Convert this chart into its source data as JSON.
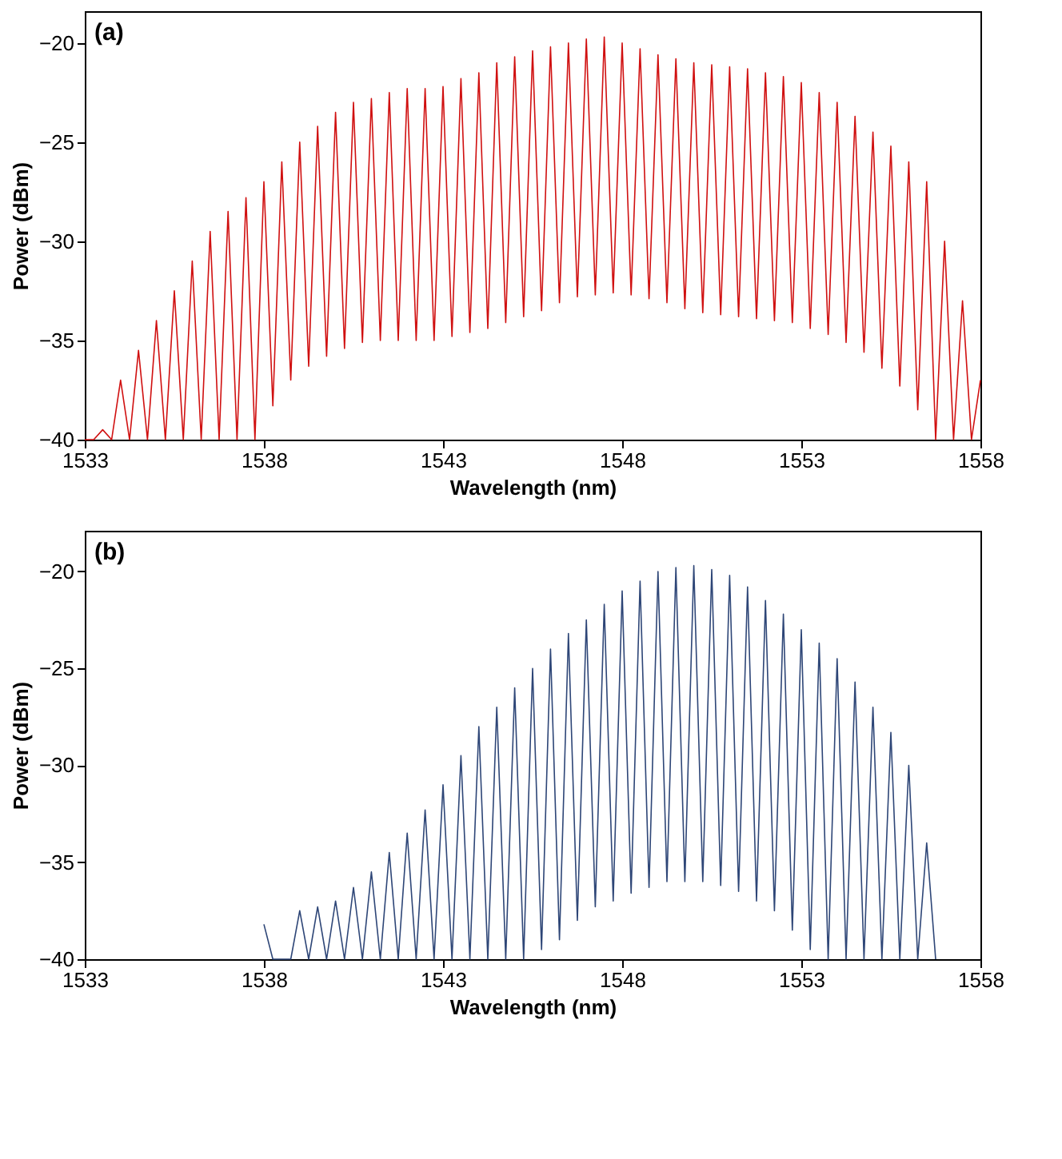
{
  "chart_data": [
    {
      "type": "line",
      "xlabel": "Wavelength (nm)",
      "ylabel": "Power (dBm)",
      "annotations": [
        "(a)"
      ],
      "xlim": [
        1533,
        1558
      ],
      "xticks": [
        1533,
        1538,
        1543,
        1548,
        1553,
        1558
      ],
      "ylim": [
        -40,
        -18.4
      ],
      "yticks": [
        -40,
        -35,
        -30,
        -25,
        -20
      ],
      "grid": false,
      "legend": false,
      "line_style": "solid",
      "marker": "none",
      "x": [
        1533.0,
        1533.25,
        1533.5,
        1533.75,
        1534.0,
        1534.25,
        1534.5,
        1534.75,
        1535.0,
        1535.25,
        1535.5,
        1535.75,
        1536.0,
        1536.25,
        1536.5,
        1536.75,
        1537.0,
        1537.25,
        1537.5,
        1537.75,
        1538.0,
        1538.25,
        1538.5,
        1538.75,
        1539.0,
        1539.25,
        1539.5,
        1539.75,
        1540.0,
        1540.25,
        1540.5,
        1540.75,
        1541.0,
        1541.25,
        1541.5,
        1541.75,
        1542.0,
        1542.25,
        1542.5,
        1542.75,
        1543.0,
        1543.25,
        1543.5,
        1543.75,
        1544.0,
        1544.25,
        1544.5,
        1544.75,
        1545.0,
        1545.25,
        1545.5,
        1545.75,
        1546.0,
        1546.25,
        1546.5,
        1546.75,
        1547.0,
        1547.25,
        1547.5,
        1547.75,
        1548.0,
        1548.25,
        1548.5,
        1548.75,
        1549.0,
        1549.25,
        1549.5,
        1549.75,
        1550.0,
        1550.25,
        1550.5,
        1550.75,
        1551.0,
        1551.25,
        1551.5,
        1551.75,
        1552.0,
        1552.25,
        1552.5,
        1552.75,
        1553.0,
        1553.25,
        1553.5,
        1553.75,
        1554.0,
        1554.25,
        1554.5,
        1554.75,
        1555.0,
        1555.25,
        1555.5,
        1555.75,
        1556.0,
        1556.25,
        1556.5,
        1556.75,
        1557.0,
        1557.25,
        1557.5,
        1557.75,
        1558.0
      ],
      "series": [
        {
          "color": "#d01010",
          "values": [
            -40,
            -40,
            -39.5,
            -40,
            -37,
            -40,
            -35.5,
            -40,
            -34,
            -40,
            -32.5,
            -40,
            -31,
            -40,
            -29.5,
            -40,
            -28.5,
            -40,
            -27.8,
            -40,
            -27,
            -38.3,
            -26,
            -37,
            -25,
            -36.3,
            -24.2,
            -35.8,
            -23.5,
            -35.4,
            -23,
            -35.1,
            -22.8,
            -35,
            -22.5,
            -35,
            -22.3,
            -35,
            -22.3,
            -35,
            -22.2,
            -34.8,
            -21.8,
            -34.6,
            -21.5,
            -34.4,
            -21,
            -34.1,
            -20.7,
            -33.8,
            -20.4,
            -33.5,
            -20.2,
            -33.1,
            -20,
            -32.8,
            -19.8,
            -32.7,
            -19.7,
            -32.6,
            -20,
            -32.7,
            -20.3,
            -32.9,
            -20.6,
            -33.1,
            -20.8,
            -33.4,
            -21,
            -33.6,
            -21.1,
            -33.7,
            -21.2,
            -33.8,
            -21.3,
            -33.9,
            -21.5,
            -34,
            -21.7,
            -34.1,
            -22,
            -34.4,
            -22.5,
            -34.7,
            -23,
            -35.1,
            -23.7,
            -35.6,
            -24.5,
            -36.4,
            -25.2,
            -37.3,
            -26,
            -38.5,
            -27,
            -40,
            -30,
            -40,
            -33,
            -40,
            -37
          ]
        }
      ]
    },
    {
      "type": "line",
      "xlabel": "Wavelength (nm)",
      "ylabel": "Power (dBm)",
      "annotations": [
        "(b)"
      ],
      "xlim": [
        1533,
        1558
      ],
      "xticks": [
        1533,
        1538,
        1543,
        1548,
        1553,
        1558
      ],
      "ylim": [
        -40,
        -17.9
      ],
      "yticks": [
        -40,
        -35,
        -30,
        -25,
        -20
      ],
      "grid": false,
      "legend": false,
      "line_style": "solid",
      "marker": "none",
      "x": [
        1538.0,
        1538.25,
        1538.5,
        1538.75,
        1539.0,
        1539.25,
        1539.5,
        1539.75,
        1540.0,
        1540.25,
        1540.5,
        1540.75,
        1541.0,
        1541.25,
        1541.5,
        1541.75,
        1542.0,
        1542.25,
        1542.5,
        1542.75,
        1543.0,
        1543.25,
        1543.5,
        1543.75,
        1544.0,
        1544.25,
        1544.5,
        1544.75,
        1545.0,
        1545.25,
        1545.5,
        1545.75,
        1546.0,
        1546.25,
        1546.5,
        1546.75,
        1547.0,
        1547.25,
        1547.5,
        1547.75,
        1548.0,
        1548.25,
        1548.5,
        1548.75,
        1549.0,
        1549.25,
        1549.5,
        1549.75,
        1550.0,
        1550.25,
        1550.5,
        1550.75,
        1551.0,
        1551.25,
        1551.5,
        1551.75,
        1552.0,
        1552.25,
        1552.5,
        1552.75,
        1553.0,
        1553.25,
        1553.5,
        1553.75,
        1554.0,
        1554.25,
        1554.5,
        1554.75,
        1555.0,
        1555.25,
        1555.5,
        1555.75,
        1556.0,
        1556.25,
        1556.5,
        1556.75
      ],
      "series": [
        {
          "color": "#2e4677",
          "values": [
            -38.2,
            -40,
            -40,
            -40,
            -37.5,
            -40,
            -37.3,
            -40,
            -37,
            -40,
            -36.3,
            -40,
            -35.5,
            -40,
            -34.5,
            -40,
            -33.5,
            -40,
            -32.3,
            -40,
            -31,
            -40,
            -29.5,
            -40,
            -28,
            -40,
            -27,
            -40,
            -26,
            -40,
            -25,
            -39.5,
            -24,
            -39,
            -23.2,
            -38,
            -22.5,
            -37.3,
            -21.7,
            -37,
            -21,
            -36.6,
            -20.5,
            -36.3,
            -20,
            -36,
            -19.8,
            -36,
            -19.7,
            -36,
            -19.9,
            -36.2,
            -20.2,
            -36.5,
            -20.8,
            -37,
            -21.5,
            -37.5,
            -22.2,
            -38.5,
            -23,
            -39.5,
            -23.7,
            -40,
            -24.5,
            -40,
            -25.7,
            -40,
            -27,
            -40,
            -28.3,
            -40,
            -30,
            -40,
            -34,
            -40
          ]
        }
      ]
    }
  ]
}
